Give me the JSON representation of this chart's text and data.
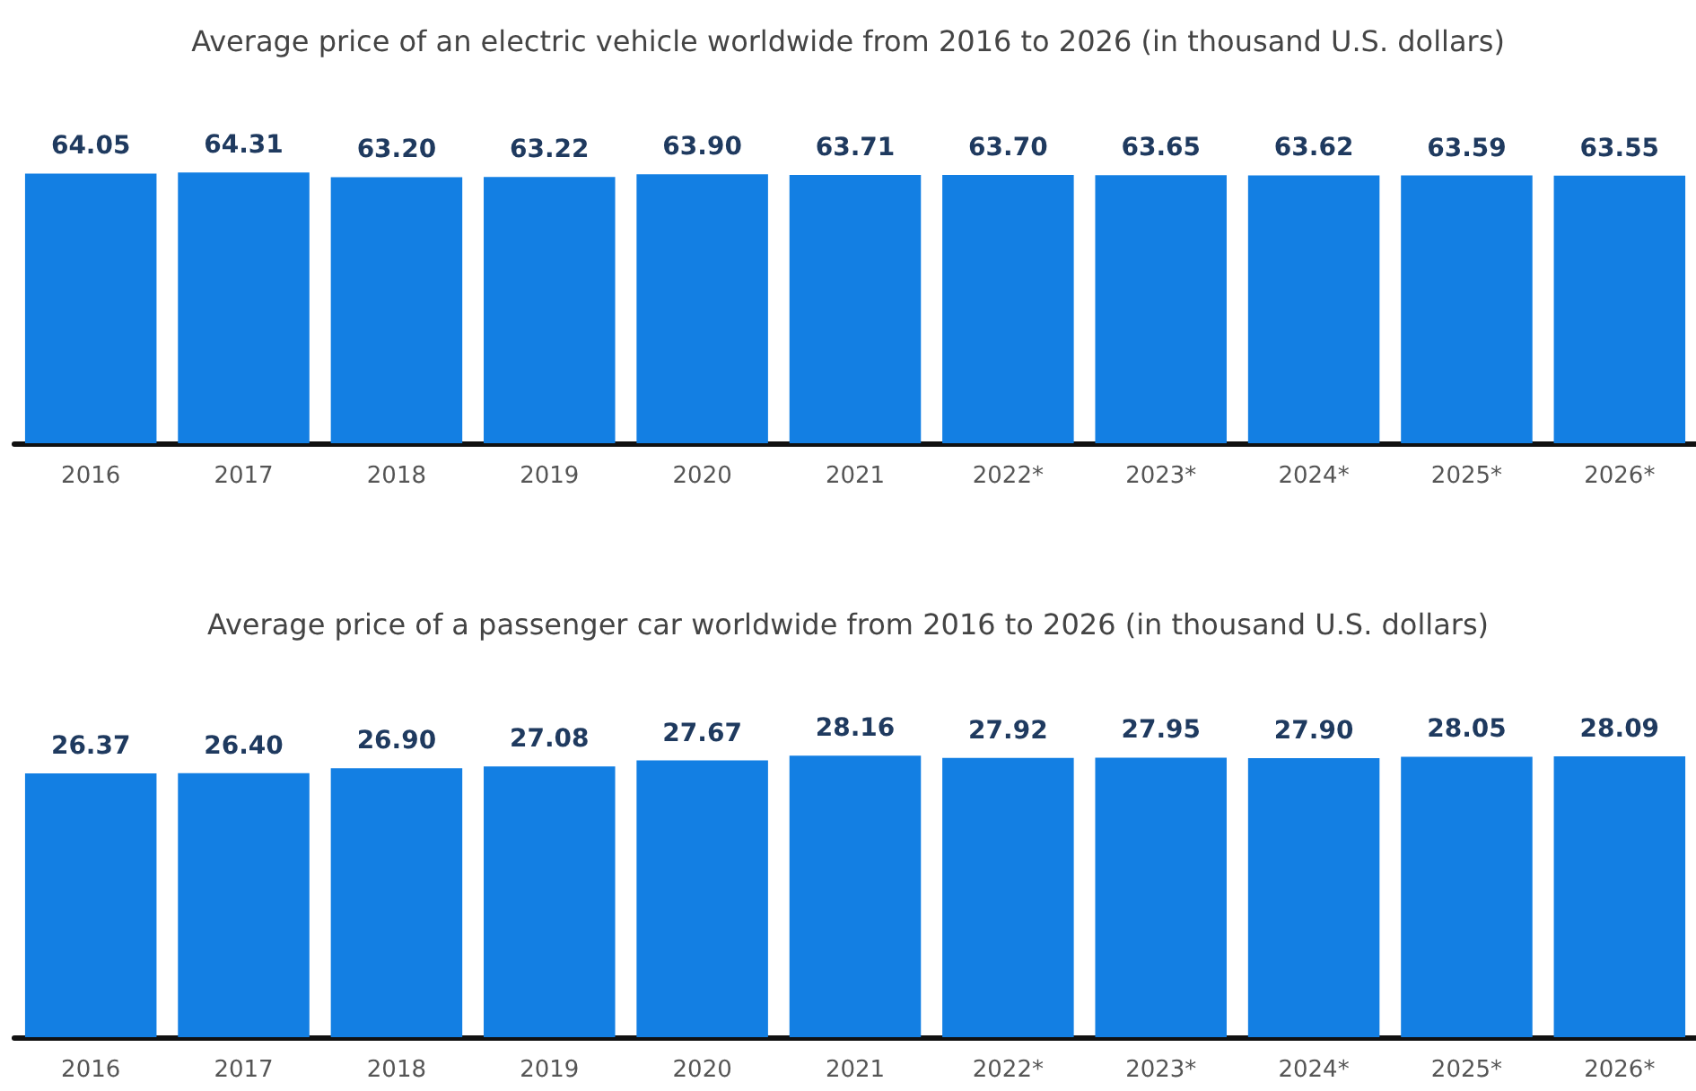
{
  "chart_data": [
    {
      "type": "bar",
      "title": "Average price of an electric vehicle worldwide from 2016 to 2026 (in thousand U.S. dollars)",
      "categories": [
        "2016",
        "2017",
        "2018",
        "2019",
        "2020",
        "2021",
        "2022*",
        "2023*",
        "2024*",
        "2025*",
        "2026*"
      ],
      "values": [
        64.05,
        64.31,
        63.2,
        63.22,
        63.9,
        63.71,
        63.7,
        63.65,
        63.62,
        63.59,
        63.55
      ],
      "value_labels": [
        "64.05",
        "64.31",
        "63.20",
        "63.22",
        "63.90",
        "63.71",
        "63.70",
        "63.65",
        "63.62",
        "63.59",
        "63.55"
      ],
      "color": "#137fe3",
      "tick_labels": "x"
    },
    {
      "type": "bar",
      "title": "Average price of a passenger car worldwide from 2016 to 2026 (in thousand U.S. dollars)",
      "categories": [
        "2016",
        "2017",
        "2018",
        "2019",
        "2020",
        "2021",
        "2022*",
        "2023*",
        "2024*",
        "2025*",
        "2026*"
      ],
      "values": [
        26.37,
        26.4,
        26.9,
        27.08,
        27.67,
        28.16,
        27.92,
        27.95,
        27.9,
        28.05,
        28.09
      ],
      "value_labels": [
        "26.37",
        "26.40",
        "26.90",
        "27.08",
        "27.67",
        "28.16",
        "27.92",
        "27.95",
        "27.90",
        "28.05",
        "28.09"
      ],
      "color": "#137fe3",
      "tick_labels": "x"
    }
  ]
}
